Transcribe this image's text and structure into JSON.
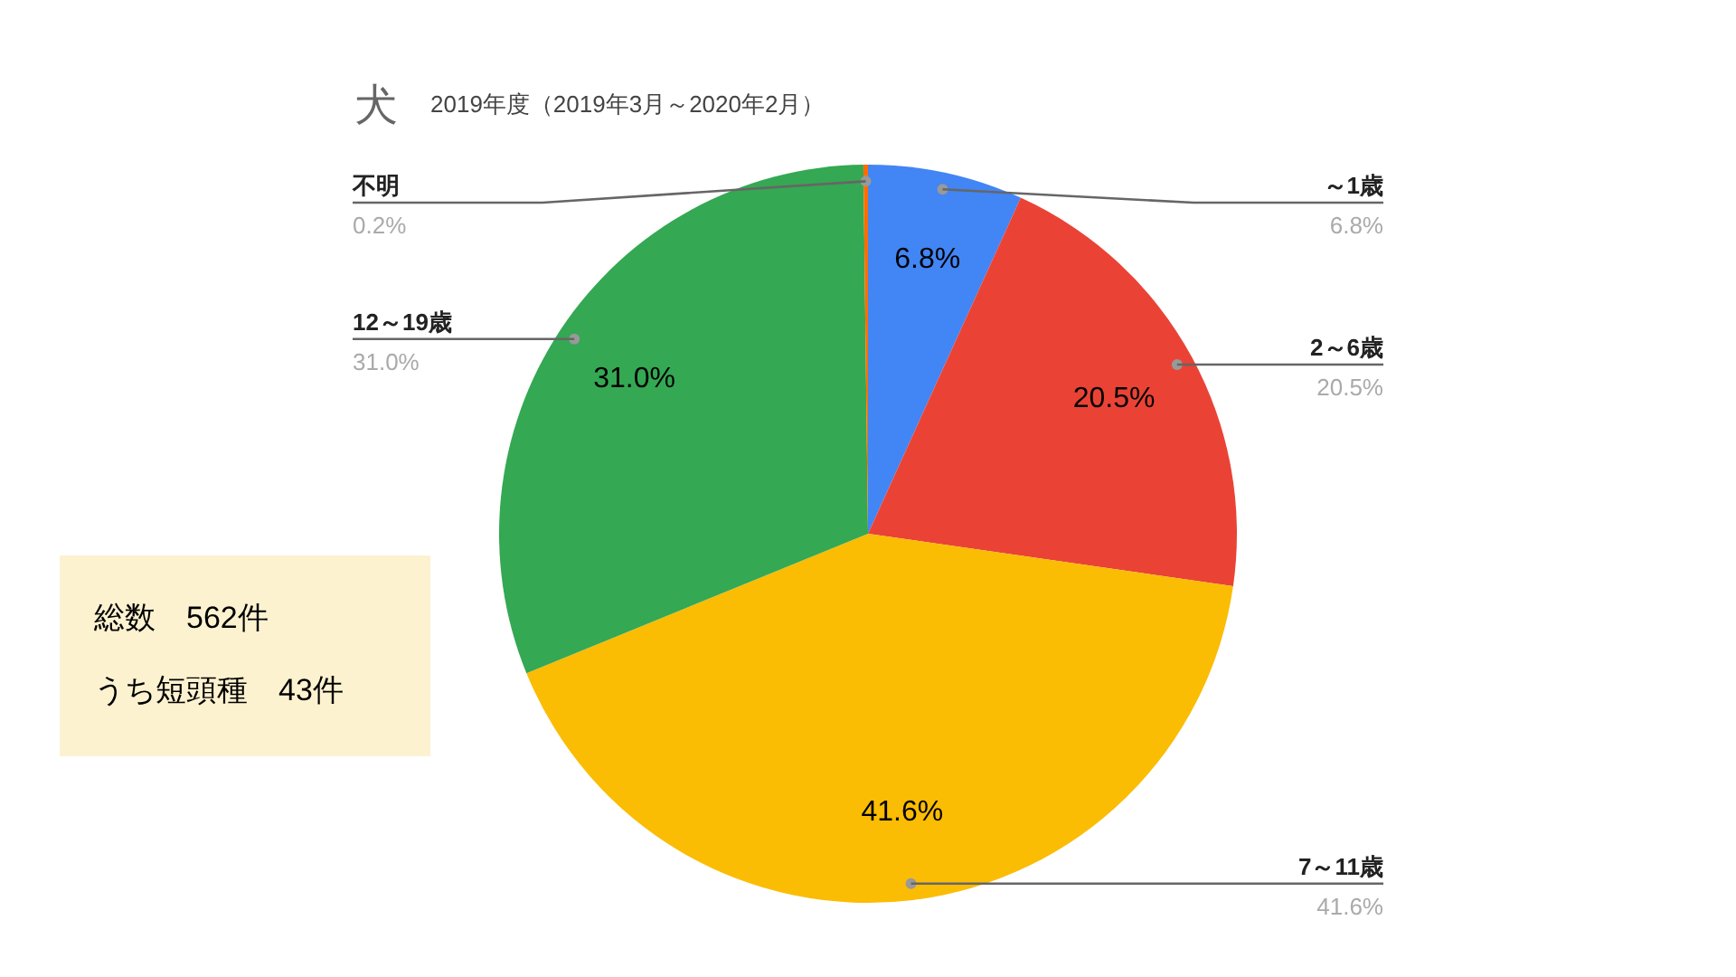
{
  "chart_data": {
    "type": "pie",
    "title": "犬",
    "subtitle": "2019年度（2019年3月～2020年2月）",
    "categories": [
      "～1歳",
      "2～6歳",
      "7～11歳",
      "12～19歳",
      "不明"
    ],
    "values": [
      6.8,
      20.5,
      41.6,
      31.0,
      0.2
    ],
    "colors": [
      "#4285f4",
      "#ea4335",
      "#fbbc04",
      "#34a853",
      "#ff6d01"
    ],
    "value_labels": [
      "6.8%",
      "20.5%",
      "41.6%",
      "31.0%",
      "0.2%"
    ],
    "annotations": [
      "総数　562件",
      "うち短頭種　43件"
    ]
  }
}
